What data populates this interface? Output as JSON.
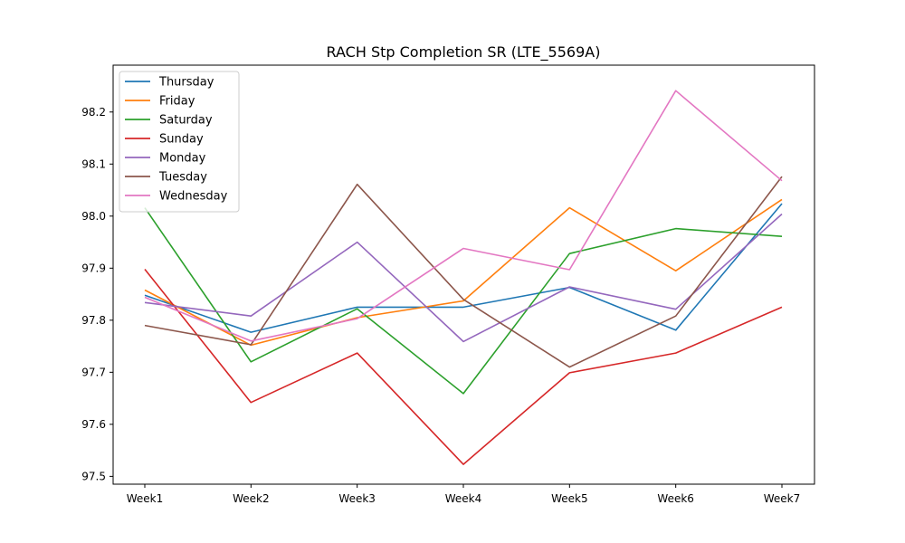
{
  "chart_data": {
    "type": "line",
    "title": "RACH Stp Completion SR (LTE_5569A)",
    "xlabel": "",
    "ylabel": "",
    "categories": [
      "Week1",
      "Week2",
      "Week3",
      "Week4",
      "Week5",
      "Week6",
      "Week7"
    ],
    "ylim": [
      97.485,
      98.29
    ],
    "yticks": [
      97.5,
      97.6,
      97.7,
      97.8,
      97.9,
      98.0,
      98.1,
      98.2
    ],
    "ytick_labels": [
      "97.5",
      "97.6",
      "97.7",
      "97.8",
      "97.9",
      "98.0",
      "98.1",
      "98.2"
    ],
    "grid": false,
    "legend_position": "top-left",
    "series": [
      {
        "name": "Thursday",
        "color": "#1f77b4",
        "values": [
          97.848,
          97.777,
          97.825,
          97.825,
          97.863,
          97.781,
          98.024
        ]
      },
      {
        "name": "Friday",
        "color": "#ff7f0e",
        "values": [
          97.858,
          97.752,
          97.805,
          97.837,
          98.016,
          97.895,
          98.032
        ]
      },
      {
        "name": "Saturday",
        "color": "#2ca02c",
        "values": [
          98.016,
          97.72,
          97.822,
          97.659,
          97.928,
          97.976,
          97.961
        ]
      },
      {
        "name": "Sunday",
        "color": "#d62728",
        "values": [
          97.898,
          97.642,
          97.737,
          97.523,
          97.699,
          97.737,
          97.825
        ]
      },
      {
        "name": "Monday",
        "color": "#9467bd",
        "values": [
          97.834,
          97.808,
          97.95,
          97.759,
          97.864,
          97.821,
          98.004
        ]
      },
      {
        "name": "Tuesday",
        "color": "#8c564b",
        "values": [
          97.79,
          97.753,
          98.061,
          97.84,
          97.71,
          97.808,
          98.076
        ]
      },
      {
        "name": "Wednesday",
        "color": "#e377c2",
        "values": [
          97.844,
          97.76,
          97.803,
          97.938,
          97.897,
          98.241,
          98.068
        ]
      }
    ]
  }
}
